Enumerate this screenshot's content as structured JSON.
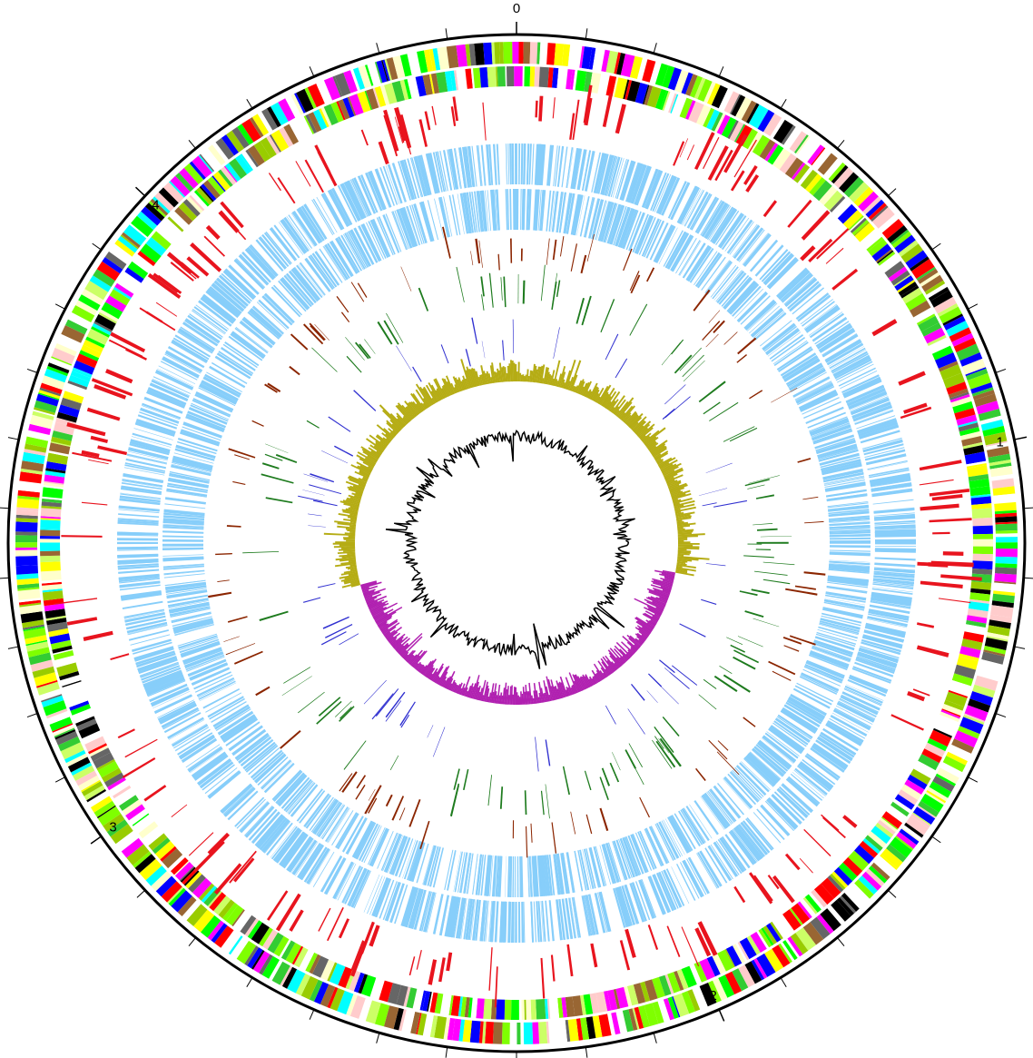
{
  "chart_data": {
    "type": "circular",
    "xlim": [
      0,
      4.6
    ],
    "xticks": [
      0,
      1,
      2,
      3,
      4
    ],
    "minor_xticks": [
      0.1,
      0.2,
      0.3,
      0.4,
      0.5,
      0.6,
      0.7,
      0.8,
      0.9,
      1.1,
      1.2,
      1.3,
      1.4,
      1.5,
      1.6,
      1.7,
      1.8,
      1.9,
      2.1,
      2.2,
      2.3,
      2.4,
      2.5,
      2.6,
      2.7,
      2.8,
      2.9,
      3.1,
      3.2,
      3.3,
      3.4,
      3.5,
      3.6,
      3.7,
      3.8,
      3.9,
      4.1,
      4.2,
      4.3,
      4.4,
      4.5
    ]
  }
}
